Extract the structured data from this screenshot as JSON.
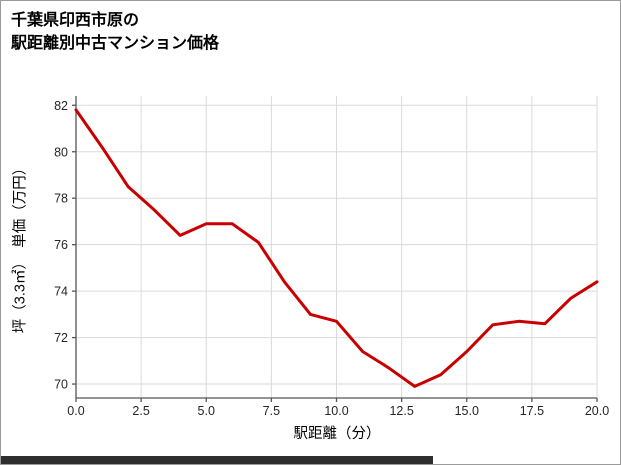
{
  "page": {
    "background": "#ffffff",
    "border_color": "#9b9b9b"
  },
  "chart_data": {
    "type": "line",
    "title_lines": [
      "千葉県印西市原の",
      "駅距離別中古マンション価格"
    ],
    "xlabel": "駅距離（分）",
    "ylabel": "坪（3.3㎡）　単価（万円）",
    "x": [
      0,
      1,
      2,
      3,
      4,
      5,
      6,
      7,
      8,
      9,
      10,
      11,
      12,
      13,
      14,
      15,
      16,
      17,
      18,
      19,
      20
    ],
    "y": [
      81.8,
      80.2,
      78.5,
      77.5,
      76.4,
      76.9,
      76.9,
      76.1,
      74.4,
      73.0,
      72.7,
      71.4,
      70.7,
      69.9,
      70.4,
      71.4,
      72.55,
      72.7,
      72.6,
      73.7,
      74.4
    ],
    "xticks": [
      0,
      2.5,
      5,
      7.5,
      10,
      12.5,
      15,
      17.5,
      20
    ],
    "xtick_labels": [
      "0.0",
      "2.5",
      "5.0",
      "7.5",
      "10.0",
      "12.5",
      "15.0",
      "17.5",
      "20.0"
    ],
    "yticks": [
      70,
      72,
      74,
      76,
      78,
      80,
      82
    ],
    "ytick_labels": [
      "70",
      "72",
      "74",
      "76",
      "78",
      "80",
      "82"
    ],
    "xlim": [
      0,
      20
    ],
    "ylim": [
      69.4,
      82.4
    ],
    "grid": true,
    "legend": "none",
    "colors": {
      "line": "#c80000",
      "grid": "#dadada",
      "axis": "#555555",
      "tick_text": "#262626",
      "title_text": "#000000"
    }
  }
}
